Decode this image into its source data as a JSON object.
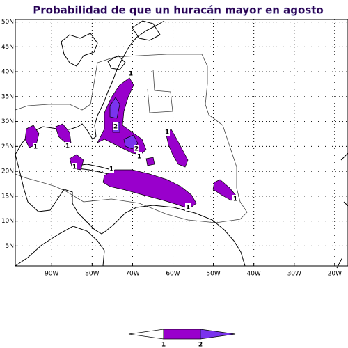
{
  "map": {
    "title": "Probabilidad de que un huracán mayor en agosto",
    "xlim": [
      -99,
      -16.7
    ],
    "ylim": [
      1,
      50.5
    ],
    "xticks": [
      {
        "value": -90,
        "label": "90W"
      },
      {
        "value": -80,
        "label": "80W"
      },
      {
        "value": -70,
        "label": "70W"
      },
      {
        "value": -60,
        "label": "60W"
      },
      {
        "value": -50,
        "label": "50W"
      },
      {
        "value": -40,
        "label": "40W"
      },
      {
        "value": -30,
        "label": "30W"
      },
      {
        "value": -20,
        "label": "20W"
      }
    ],
    "yticks": [
      {
        "value": 5,
        "label": "5N"
      },
      {
        "value": 10,
        "label": "10N"
      },
      {
        "value": 15,
        "label": "15N"
      },
      {
        "value": 20,
        "label": "20N"
      },
      {
        "value": 25,
        "label": "25N"
      },
      {
        "value": 30,
        "label": "30N"
      },
      {
        "value": 35,
        "label": "35N"
      },
      {
        "value": 40,
        "label": "40N"
      },
      {
        "value": 45,
        "label": "45N"
      },
      {
        "value": 50,
        "label": "50N"
      }
    ],
    "contour_labels": [
      "1",
      "2",
      "2",
      "1",
      "1",
      "1",
      "1",
      "1",
      "1",
      "1",
      "1"
    ],
    "colorbar_labels": [
      "1",
      "2"
    ]
  }
}
